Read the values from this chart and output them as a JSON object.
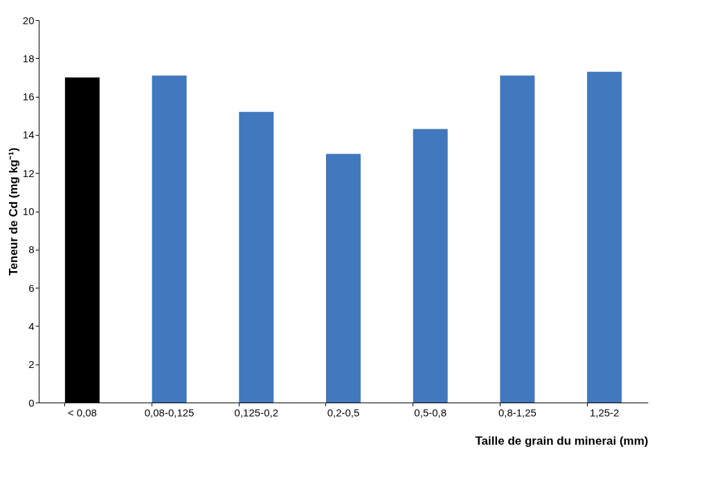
{
  "chart_data": {
    "type": "bar",
    "xlabel": "Taille de grain du minerai (mm)",
    "ylabel": "Teneur de Cd (mg kg⁻¹)",
    "categories": [
      "< 0,08",
      "0,08-0,125",
      "0,125-0,2",
      "0,2-0,5",
      "0,5-0,8",
      "0,8-1,25",
      "1,25-2"
    ],
    "values": [
      17.0,
      17.1,
      15.2,
      13.0,
      14.3,
      17.1,
      17.3
    ],
    "colors": [
      "#000000",
      "#4178be",
      "#4178be",
      "#4178be",
      "#4178be",
      "#4178be",
      "#4178be"
    ],
    "ylim": [
      0,
      20
    ],
    "yticks": [
      0,
      2,
      4,
      6,
      8,
      10,
      12,
      14,
      16,
      18,
      20
    ],
    "grid": false
  }
}
